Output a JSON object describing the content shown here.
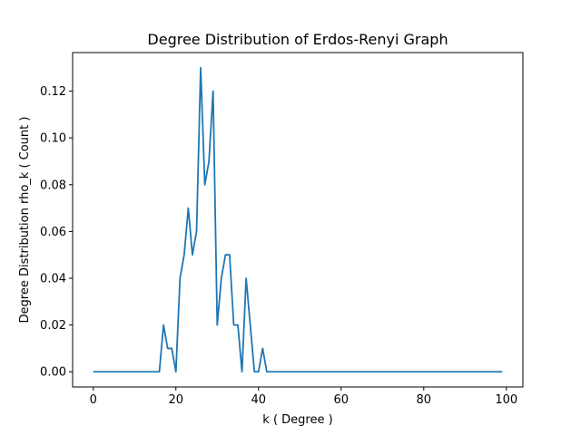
{
  "chart_data": {
    "type": "line",
    "title": "Degree Distribution of Erdos-Renyi Graph",
    "xlabel": "k ( Degree )",
    "ylabel": "Degree Distribution rho_k ( Count )",
    "xlim": [
      -5,
      104
    ],
    "ylim": [
      -0.0065,
      0.1365
    ],
    "xticks": [
      0,
      20,
      40,
      60,
      80,
      100
    ],
    "yticks": [
      0.0,
      0.02,
      0.04,
      0.06,
      0.08,
      0.1,
      0.12
    ],
    "ytick_labels": [
      "0.00",
      "0.02",
      "0.04",
      "0.06",
      "0.08",
      "0.10",
      "0.12"
    ],
    "grid": false,
    "color": "#1f77b4",
    "series": [
      {
        "x": [
          0,
          1,
          2,
          3,
          4,
          5,
          6,
          7,
          8,
          9,
          10,
          11,
          12,
          13,
          14,
          15,
          16,
          17,
          18,
          19,
          20,
          21,
          22,
          23,
          24,
          25,
          26,
          27,
          28,
          29,
          30,
          31,
          32,
          33,
          34,
          35,
          36,
          37,
          38,
          39,
          40,
          41,
          42,
          43,
          44,
          45,
          46,
          47,
          48,
          49,
          50,
          51,
          52,
          53,
          54,
          55,
          56,
          57,
          58,
          59,
          60,
          61,
          62,
          63,
          64,
          65,
          66,
          67,
          68,
          69,
          70,
          71,
          72,
          73,
          74,
          75,
          76,
          77,
          78,
          79,
          80,
          81,
          82,
          83,
          84,
          85,
          86,
          87,
          88,
          89,
          90,
          91,
          92,
          93,
          94,
          95,
          96,
          97,
          98,
          99
        ],
        "y": [
          0,
          0,
          0,
          0,
          0,
          0,
          0,
          0,
          0,
          0,
          0,
          0,
          0,
          0,
          0,
          0,
          0,
          0.02,
          0.01,
          0.01,
          0,
          0.04,
          0.05,
          0.07,
          0.05,
          0.06,
          0.13,
          0.08,
          0.09,
          0.12,
          0.02,
          0.04,
          0.05,
          0.05,
          0.02,
          0.02,
          0,
          0.04,
          0.02,
          0,
          0,
          0.01,
          0,
          0,
          0,
          0,
          0,
          0,
          0,
          0,
          0,
          0,
          0,
          0,
          0,
          0,
          0,
          0,
          0,
          0,
          0,
          0,
          0,
          0,
          0,
          0,
          0,
          0,
          0,
          0,
          0,
          0,
          0,
          0,
          0,
          0,
          0,
          0,
          0,
          0,
          0,
          0,
          0,
          0,
          0,
          0,
          0,
          0,
          0,
          0,
          0,
          0,
          0,
          0,
          0,
          0,
          0,
          0,
          0,
          0
        ]
      }
    ]
  }
}
